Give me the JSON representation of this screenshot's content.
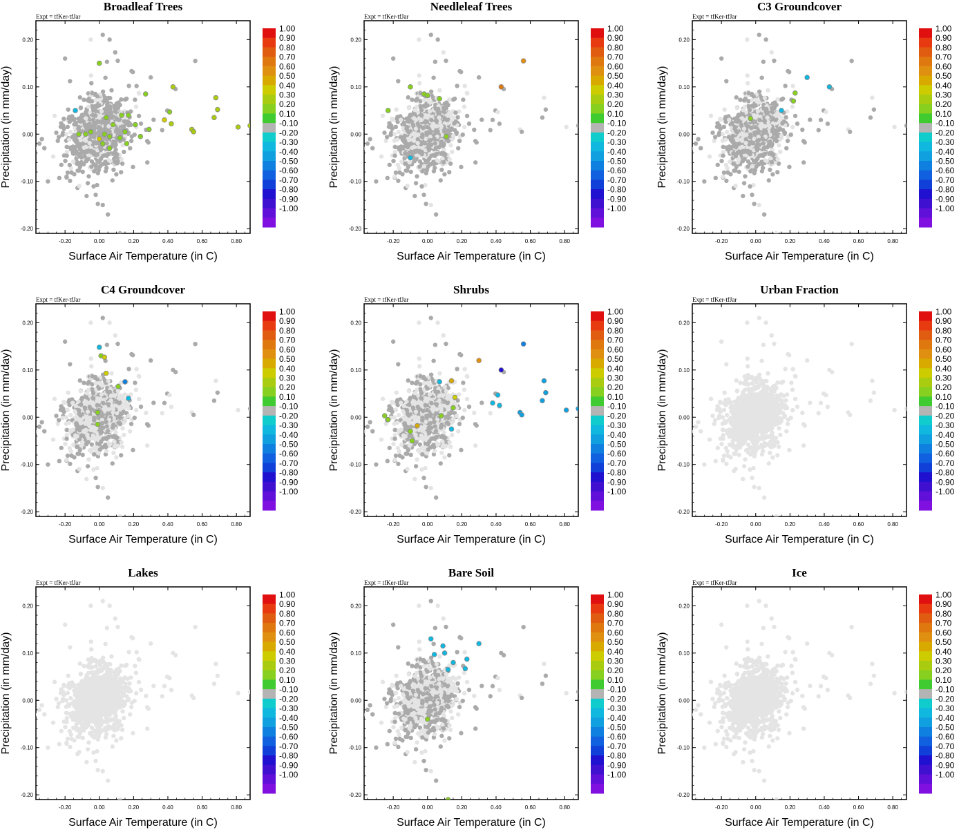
{
  "figure": {
    "expt_label": "Expt = tfKer-tfJar",
    "xlabel": "Surface Air Temperature (in C)",
    "ylabel": "Precipitation (in mm/day)"
  },
  "colors": {
    "background_point": "#e4e4e4",
    "highlight_point": "#aaaaaa",
    "colorbar": [
      "#e01010",
      "#e83a10",
      "#e05c10",
      "#e07810",
      "#e09010",
      "#d8aa00",
      "#cccc00",
      "#aacc10",
      "#88d020",
      "#40cc30",
      "#b4b4b4",
      "#10cccc",
      "#10b8e0",
      "#10a0e0",
      "#1080e0",
      "#1060e0",
      "#1040d8",
      "#2010d0",
      "#4010d0",
      "#6010d8",
      "#8010e0"
    ]
  },
  "colorbar_labels": [
    "1.00",
    "0.90",
    "0.80",
    "0.70",
    "0.60",
    "0.50",
    "0.40",
    "0.30",
    "0.20",
    "0.10",
    "-0.10",
    "-0.20",
    "-0.30",
    "-0.40",
    "-0.50",
    "-0.60",
    "-0.70",
    "-0.80",
    "-0.90",
    "-1.00"
  ],
  "chart_data": [
    {
      "type": "scatter",
      "title": "Broadleaf Trees",
      "xlabel": "Surface Air Temperature (in C)",
      "ylabel": "Precipitation (in mm/day)",
      "xlim": [
        -0.37,
        0.88
      ],
      "ylim": [
        -0.21,
        0.24
      ],
      "x_ticks": [
        "-0.20",
        "0.00",
        "0.20",
        "0.40",
        "0.60",
        "0.80"
      ],
      "y_ticks": [
        "0.20",
        "0.10",
        "0.00",
        "-0.10",
        "-0.20"
      ],
      "grey_spread": 0.78,
      "colored_points": [
        {
          "x": 0.0,
          "y": 0.15,
          "v": 0.15
        },
        {
          "x": 0.27,
          "y": 0.085,
          "v": 0.2
        },
        {
          "x": 0.43,
          "y": 0.1,
          "v": 0.25
        },
        {
          "x": 0.68,
          "y": 0.077,
          "v": 0.25
        },
        {
          "x": 0.69,
          "y": 0.052,
          "v": 0.25
        },
        {
          "x": 0.67,
          "y": 0.035,
          "v": 0.25
        },
        {
          "x": 0.41,
          "y": 0.047,
          "v": 0.15
        },
        {
          "x": 0.38,
          "y": 0.03,
          "v": 0.3
        },
        {
          "x": 0.42,
          "y": 0.022,
          "v": 0.25
        },
        {
          "x": 0.54,
          "y": 0.01,
          "v": 0.25
        },
        {
          "x": 0.55,
          "y": 0.005,
          "v": 0.25
        },
        {
          "x": 0.81,
          "y": 0.015,
          "v": 0.25
        },
        {
          "x": 0.88,
          "y": 0.018,
          "v": 0.25
        },
        {
          "x": 0.17,
          "y": 0.04,
          "v": 0.15
        },
        {
          "x": 0.13,
          "y": 0.04,
          "v": 0.15
        },
        {
          "x": 0.04,
          "y": 0.035,
          "v": 0.15
        },
        {
          "x": -0.05,
          "y": 0.005,
          "v": 0.15
        },
        {
          "x": 0.03,
          "y": 0.0,
          "v": 0.15
        },
        {
          "x": 0.06,
          "y": -0.005,
          "v": 0.15
        },
        {
          "x": 0.12,
          "y": -0.008,
          "v": 0.15
        },
        {
          "x": 0.02,
          "y": -0.02,
          "v": 0.15
        },
        {
          "x": 0.06,
          "y": -0.03,
          "v": 0.15
        },
        {
          "x": 0.24,
          "y": -0.005,
          "v": 0.15
        },
        {
          "x": 0.29,
          "y": 0.01,
          "v": 0.15
        },
        {
          "x": 0.15,
          "y": 0.005,
          "v": 0.15
        },
        {
          "x": 0.08,
          "y": 0.02,
          "v": 0.15
        },
        {
          "x": -0.12,
          "y": 0.0,
          "v": 0.15
        },
        {
          "x": -0.08,
          "y": 0.0,
          "v": 0.15
        },
        {
          "x": 0.0,
          "y": -0.01,
          "v": 0.3
        },
        {
          "x": 0.16,
          "y": -0.02,
          "v": 0.15
        },
        {
          "x": 0.21,
          "y": 0.02,
          "v": 0.15
        },
        {
          "x": -0.14,
          "y": 0.05,
          "v": -0.3
        }
      ]
    },
    {
      "type": "scatter",
      "title": "Needleleaf Trees",
      "xlabel": "Surface Air Temperature (in C)",
      "ylabel": "Precipitation (in mm/day)",
      "xlim": [
        -0.37,
        0.88
      ],
      "ylim": [
        -0.21,
        0.24
      ],
      "x_ticks": [
        "-0.20",
        "0.00",
        "0.20",
        "0.40",
        "0.60",
        "0.80"
      ],
      "y_ticks": [
        "0.20",
        "0.10",
        "0.00",
        "-0.10",
        "-0.20"
      ],
      "grey_spread": 0.66,
      "colored_points": [
        {
          "x": 0.56,
          "y": 0.155,
          "v": 0.55
        },
        {
          "x": 0.43,
          "y": 0.1,
          "v": 0.65
        },
        {
          "x": -0.1,
          "y": 0.1,
          "v": 0.2
        },
        {
          "x": -0.02,
          "y": 0.085,
          "v": 0.2
        },
        {
          "x": 0.0,
          "y": 0.082,
          "v": 0.2
        },
        {
          "x": 0.07,
          "y": 0.075,
          "v": 0.2
        },
        {
          "x": -0.23,
          "y": 0.05,
          "v": 0.15
        },
        {
          "x": 0.11,
          "y": -0.005,
          "v": 0.15
        },
        {
          "x": -0.1,
          "y": -0.05,
          "v": -0.2
        }
      ]
    },
    {
      "type": "scatter",
      "title": "C3 Groundcover",
      "xlabel": "Surface Air Temperature (in C)",
      "ylabel": "Precipitation (in mm/day)",
      "xlim": [
        -0.37,
        0.88
      ],
      "ylim": [
        -0.21,
        0.24
      ],
      "x_ticks": [
        "-0.20",
        "0.00",
        "0.20",
        "0.40",
        "0.60",
        "0.80"
      ],
      "y_ticks": [
        "0.20",
        "0.10",
        "0.00",
        "-0.10",
        "-0.20"
      ],
      "grey_spread": 0.66,
      "colored_points": [
        {
          "x": 0.3,
          "y": 0.12,
          "v": -0.25
        },
        {
          "x": 0.43,
          "y": 0.1,
          "v": -0.25
        },
        {
          "x": 0.23,
          "y": 0.087,
          "v": 0.15
        },
        {
          "x": 0.22,
          "y": 0.07,
          "v": 0.2
        },
        {
          "x": -0.03,
          "y": 0.033,
          "v": 0.2
        },
        {
          "x": 0.15,
          "y": 0.05,
          "v": -0.2
        }
      ]
    },
    {
      "type": "scatter",
      "title": "C4 Groundcover",
      "xlabel": "Surface Air Temperature (in C)",
      "ylabel": "Precipitation (in mm/day)",
      "xlim": [
        -0.37,
        0.88
      ],
      "ylim": [
        -0.21,
        0.24
      ],
      "x_ticks": [
        "-0.20",
        "0.00",
        "0.20",
        "0.40",
        "0.60",
        "0.80"
      ],
      "y_ticks": [
        "0.20",
        "0.10",
        "0.00",
        "-0.10",
        "-0.20"
      ],
      "grey_spread": 0.5,
      "colored_points": [
        {
          "x": 0.0,
          "y": 0.148,
          "v": -0.3
        },
        {
          "x": 0.01,
          "y": 0.13,
          "v": 0.2
        },
        {
          "x": 0.03,
          "y": 0.127,
          "v": 0.35
        },
        {
          "x": 0.04,
          "y": 0.093,
          "v": 0.35
        },
        {
          "x": 0.15,
          "y": 0.075,
          "v": -0.45
        },
        {
          "x": 0.11,
          "y": 0.065,
          "v": 0.15
        },
        {
          "x": 0.17,
          "y": 0.04,
          "v": -0.3
        },
        {
          "x": -0.01,
          "y": 0.01,
          "v": 0.15
        },
        {
          "x": -0.01,
          "y": -0.015,
          "v": 0.15
        }
      ]
    },
    {
      "type": "scatter",
      "title": "Shrubs",
      "xlabel": "Surface Air Temperature (in C)",
      "ylabel": "Precipitation (in mm/day)",
      "xlim": [
        -0.37,
        0.88
      ],
      "ylim": [
        -0.21,
        0.24
      ],
      "x_ticks": [
        "-0.20",
        "0.00",
        "0.20",
        "0.40",
        "0.60",
        "0.80"
      ],
      "y_ticks": [
        "0.20",
        "0.10",
        "0.00",
        "-0.10",
        "-0.20"
      ],
      "grey_spread": 0.5,
      "colored_points": [
        {
          "x": 0.56,
          "y": 0.155,
          "v": -0.45
        },
        {
          "x": 0.3,
          "y": 0.12,
          "v": 0.55
        },
        {
          "x": 0.43,
          "y": 0.1,
          "v": -0.75
        },
        {
          "x": 0.68,
          "y": 0.077,
          "v": -0.35
        },
        {
          "x": 0.14,
          "y": 0.077,
          "v": 0.45
        },
        {
          "x": 0.07,
          "y": 0.075,
          "v": -0.3
        },
        {
          "x": 0.69,
          "y": 0.052,
          "v": -0.35
        },
        {
          "x": 0.67,
          "y": 0.035,
          "v": -0.35
        },
        {
          "x": 0.41,
          "y": 0.047,
          "v": -0.3
        },
        {
          "x": 0.38,
          "y": 0.03,
          "v": -0.3
        },
        {
          "x": 0.42,
          "y": 0.025,
          "v": -0.3
        },
        {
          "x": 0.16,
          "y": 0.042,
          "v": 0.35
        },
        {
          "x": 0.15,
          "y": 0.02,
          "v": 0.15
        },
        {
          "x": 0.54,
          "y": 0.01,
          "v": -0.35
        },
        {
          "x": 0.55,
          "y": 0.005,
          "v": -0.35
        },
        {
          "x": 0.81,
          "y": 0.015,
          "v": -0.35
        },
        {
          "x": 0.88,
          "y": 0.018,
          "v": -0.35
        },
        {
          "x": -0.25,
          "y": 0.003,
          "v": 0.15
        },
        {
          "x": -0.23,
          "y": -0.005,
          "v": 0.15
        },
        {
          "x": 0.08,
          "y": 0.003,
          "v": 0.15
        },
        {
          "x": -0.06,
          "y": -0.018,
          "v": 0.5
        },
        {
          "x": -0.1,
          "y": -0.03,
          "v": 0.15
        },
        {
          "x": -0.09,
          "y": -0.05,
          "v": 0.15
        },
        {
          "x": 0.14,
          "y": -0.025,
          "v": -0.2
        }
      ]
    },
    {
      "type": "scatter",
      "title": "Urban Fraction",
      "xlabel": "Surface Air Temperature (in C)",
      "ylabel": "Precipitation (in mm/day)",
      "xlim": [
        -0.37,
        0.88
      ],
      "ylim": [
        -0.21,
        0.24
      ],
      "x_ticks": [
        "-0.20",
        "0.00",
        "0.20",
        "0.40",
        "0.60",
        "0.80"
      ],
      "y_ticks": [
        "0.20",
        "0.10",
        "0.00",
        "-0.10",
        "-0.20"
      ],
      "grey_spread": 0.0,
      "colored_points": []
    },
    {
      "type": "scatter",
      "title": "Lakes",
      "xlabel": "Surface Air Temperature (in C)",
      "ylabel": "Precipitation (in mm/day)",
      "xlim": [
        -0.37,
        0.88
      ],
      "ylim": [
        -0.21,
        0.24
      ],
      "x_ticks": [
        "-0.20",
        "0.00",
        "0.20",
        "0.40",
        "0.60",
        "0.80"
      ],
      "y_ticks": [
        "0.20",
        "0.10",
        "0.00",
        "-0.10",
        "-0.20"
      ],
      "grey_spread": 0.0,
      "colored_points": []
    },
    {
      "type": "scatter",
      "title": "Bare Soil",
      "xlabel": "Surface Air Temperature (in C)",
      "ylabel": "Precipitation (in mm/day)",
      "xlim": [
        -0.37,
        0.88
      ],
      "ylim": [
        -0.21,
        0.24
      ],
      "x_ticks": [
        "-0.20",
        "0.00",
        "0.20",
        "0.40",
        "0.60",
        "0.80"
      ],
      "y_ticks": [
        "0.20",
        "0.10",
        "0.00",
        "-0.10",
        "-0.20"
      ],
      "grey_spread": 0.52,
      "colored_points": [
        {
          "x": 0.02,
          "y": 0.13,
          "v": -0.25
        },
        {
          "x": 0.09,
          "y": 0.115,
          "v": -0.25
        },
        {
          "x": 0.3,
          "y": 0.12,
          "v": -0.3
        },
        {
          "x": 0.04,
          "y": 0.097,
          "v": -0.25
        },
        {
          "x": 0.1,
          "y": 0.1,
          "v": -0.25
        },
        {
          "x": 0.15,
          "y": 0.08,
          "v": -0.25
        },
        {
          "x": 0.23,
          "y": 0.087,
          "v": -0.3
        },
        {
          "x": 0.12,
          "y": 0.065,
          "v": -0.25
        },
        {
          "x": 0.22,
          "y": 0.067,
          "v": -0.25
        },
        {
          "x": 0.0,
          "y": -0.04,
          "v": 0.15
        },
        {
          "x": 0.12,
          "y": -0.21,
          "v": 0.15
        }
      ]
    },
    {
      "type": "scatter",
      "title": "Ice",
      "xlabel": "Surface Air Temperature (in C)",
      "ylabel": "Precipitation (in mm/day)",
      "xlim": [
        -0.37,
        0.88
      ],
      "ylim": [
        -0.21,
        0.24
      ],
      "x_ticks": [
        "-0.20",
        "0.00",
        "0.20",
        "0.40",
        "0.60",
        "0.80"
      ],
      "y_ticks": [
        "0.20",
        "0.10",
        "0.00",
        "-0.10",
        "-0.20"
      ],
      "grey_spread": 0.0,
      "colored_points": []
    }
  ]
}
